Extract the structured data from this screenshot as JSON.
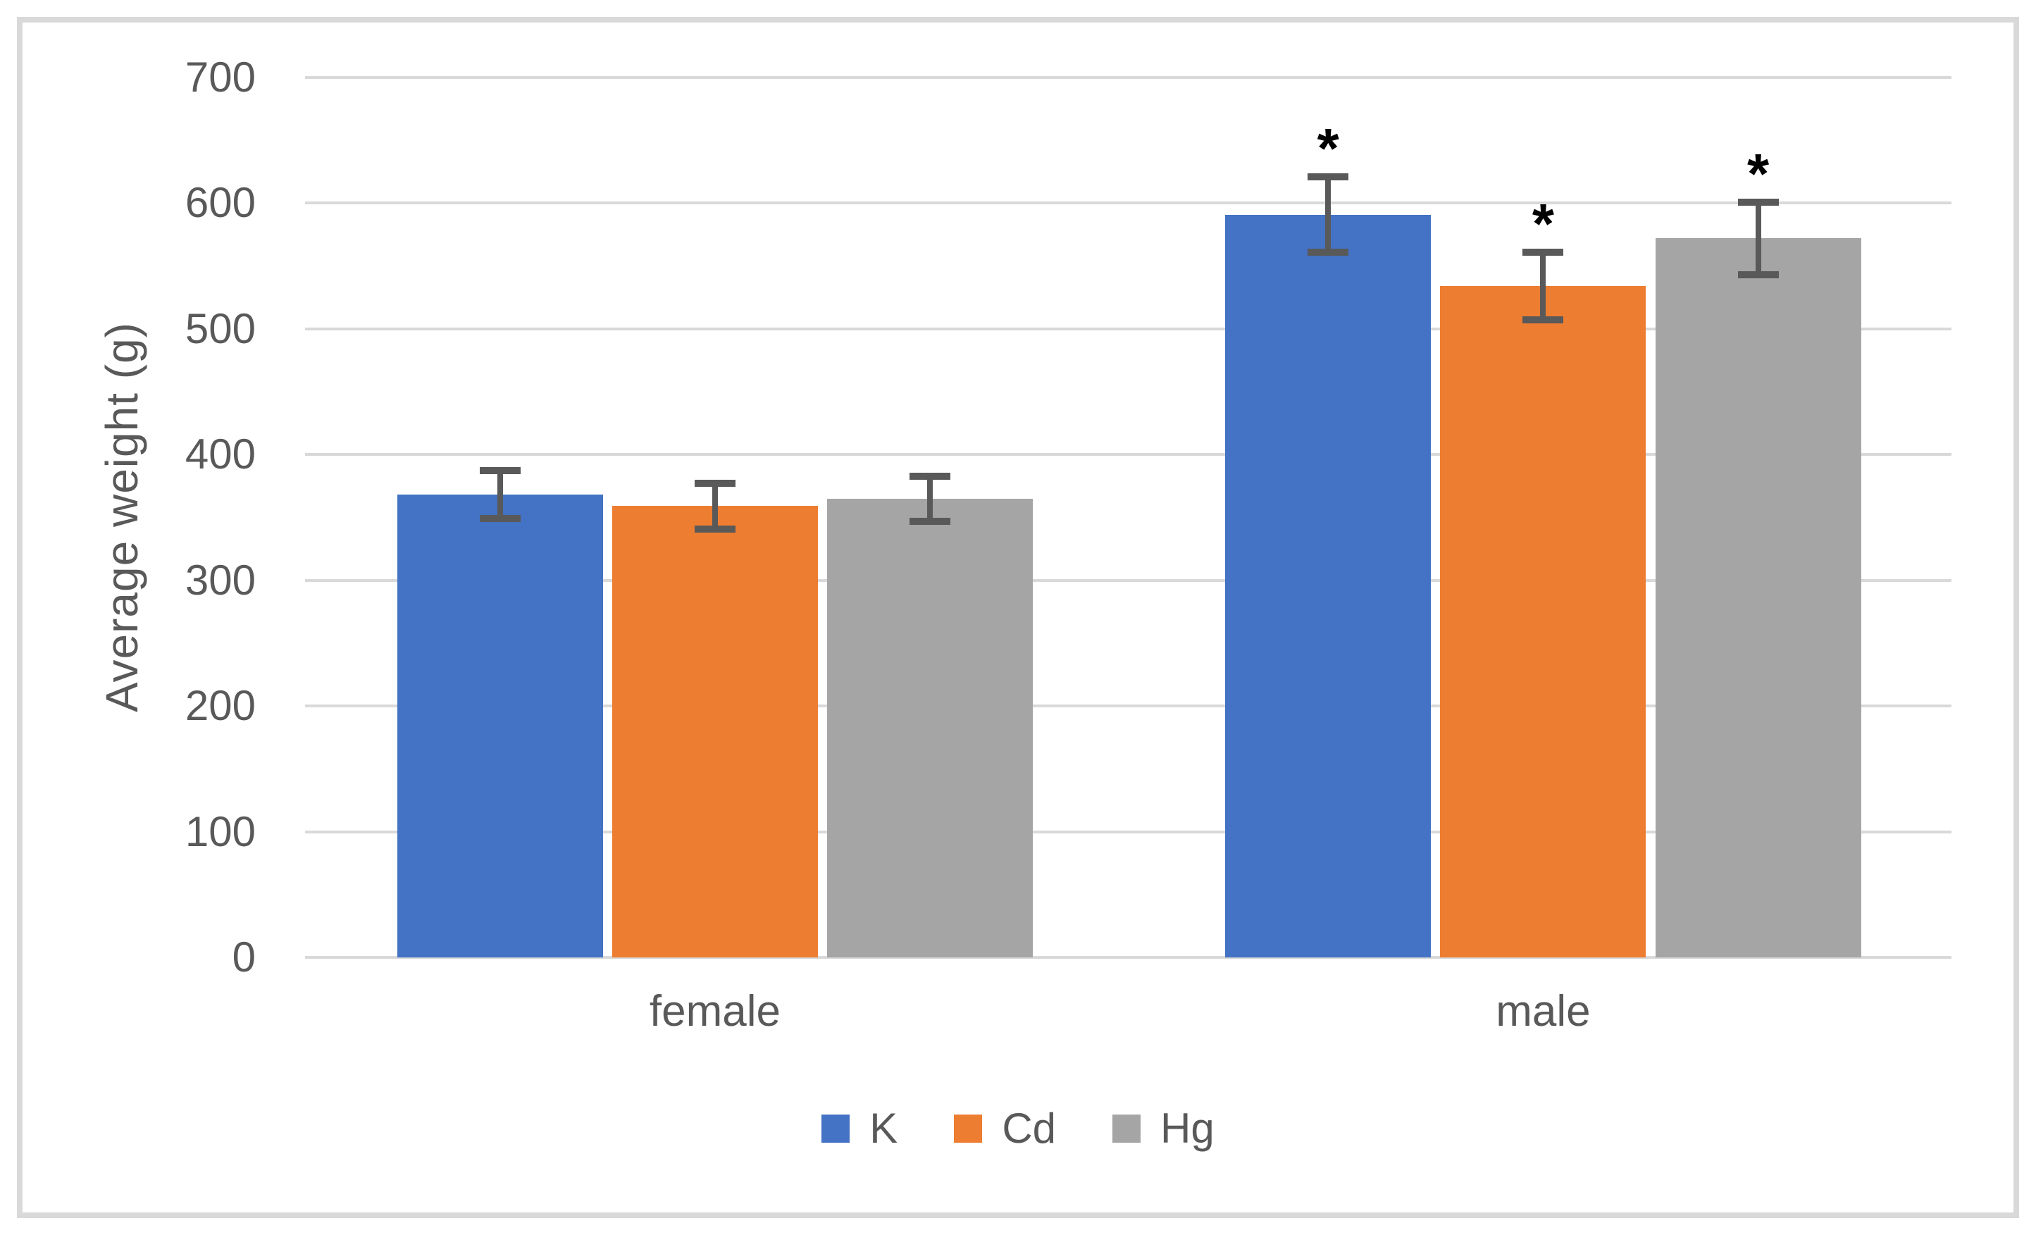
{
  "chart_data": {
    "type": "bar",
    "title": "",
    "xlabel": "",
    "ylabel": "Average weight (g)",
    "categories": [
      "female",
      "male"
    ],
    "series": [
      {
        "name": "K",
        "color": "#4472C4",
        "values": [
          368,
          591
        ],
        "errors": [
          19,
          30
        ],
        "annotations": [
          "",
          "*"
        ]
      },
      {
        "name": "Cd",
        "color": "#ED7D31",
        "values": [
          359,
          534
        ],
        "errors": [
          18,
          27
        ],
        "annotations": [
          "",
          "*"
        ]
      },
      {
        "name": "Hg",
        "color": "#A5A5A5",
        "values": [
          365,
          572
        ],
        "errors": [
          18,
          29
        ],
        "annotations": [
          "",
          "*"
        ]
      }
    ],
    "ylim": [
      0,
      700
    ],
    "yticks": [
      0,
      100,
      200,
      300,
      400,
      500,
      600,
      700
    ],
    "grid": true,
    "legend_position": "bottom",
    "gridline_color": "#D9D9D9",
    "error_bar_color": "#595959",
    "text_color": "#595959",
    "annotation_symbol_color": "#000000",
    "border_color": "#D9D9D9"
  }
}
